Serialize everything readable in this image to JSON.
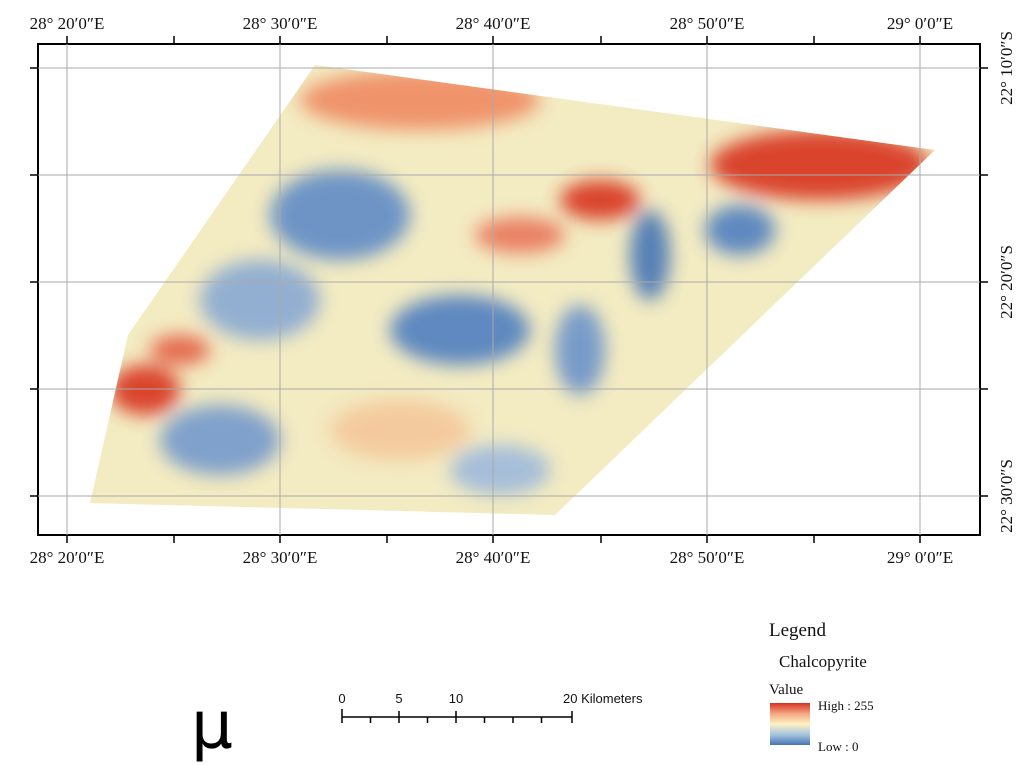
{
  "map": {
    "top_labels": [
      "28° 20′0″E",
      "28° 30′0″E",
      "28° 40′0″E",
      "28° 50′0″E",
      "29° 0′0″E"
    ],
    "bottom_labels": [
      "28° 20′0″E",
      "28° 30′0″E",
      "28° 40′0″E",
      "28° 50′0″E",
      "29° 0′0″E"
    ],
    "right_labels": [
      "22° 10′0″S",
      "22° 20′0″S",
      "22° 30′0″S"
    ]
  },
  "north_arrow": "µ",
  "scale_bar": {
    "labels": [
      "0",
      "5",
      "10",
      "20 Kilometers"
    ]
  },
  "legend": {
    "title": "Legend",
    "layer": "Chalcopyrite",
    "field": "Value",
    "high": "High : 255",
    "low": "Low : 0"
  }
}
